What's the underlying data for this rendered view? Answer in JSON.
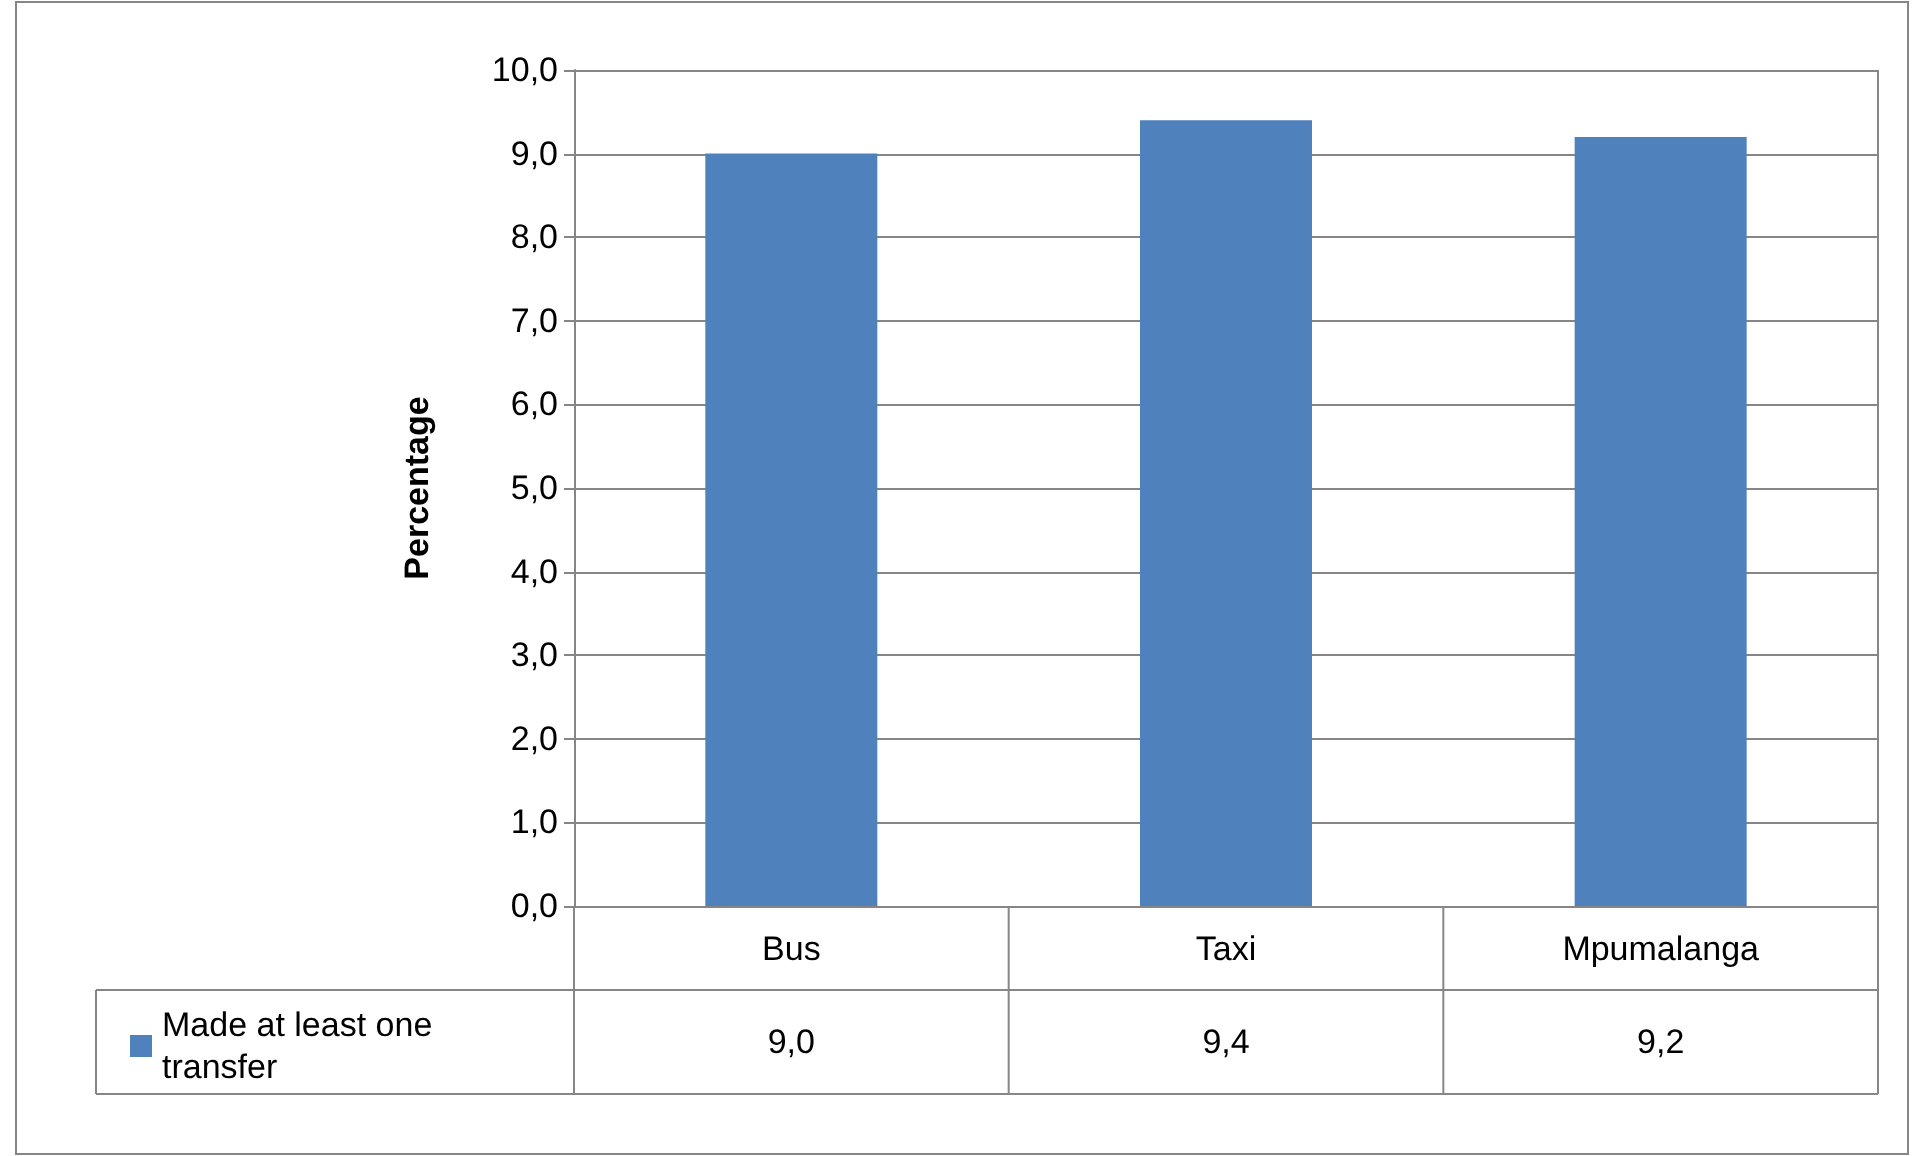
{
  "chart_data": {
    "type": "bar",
    "ylabel": "Percentage",
    "categories": [
      "Bus",
      "Taxi",
      "Mpumalanga"
    ],
    "series": [
      {
        "name": "Made at least one transfer",
        "color": "#4f81bd",
        "values": [
          9.0,
          9.4,
          9.2
        ],
        "value_labels": [
          "9,0",
          "9,4",
          "9,2"
        ]
      }
    ],
    "ylim": [
      0,
      10
    ],
    "yticks": [
      {
        "value": 0,
        "label": "0,0"
      },
      {
        "value": 1,
        "label": "1,0"
      },
      {
        "value": 2,
        "label": "2,0"
      },
      {
        "value": 3,
        "label": "3,0"
      },
      {
        "value": 4,
        "label": "4,0"
      },
      {
        "value": 5,
        "label": "5,0"
      },
      {
        "value": 6,
        "label": "6,0"
      },
      {
        "value": 7,
        "label": "7,0"
      },
      {
        "value": 8,
        "label": "8,0"
      },
      {
        "value": 9,
        "label": "9,0"
      },
      {
        "value": 10,
        "label": "10,0"
      }
    ],
    "grid": "y",
    "legend": "bottom left"
  }
}
